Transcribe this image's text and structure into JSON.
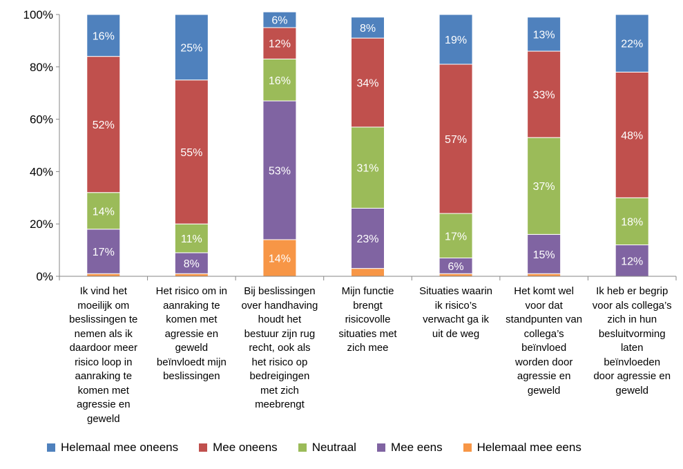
{
  "chart_data": {
    "type": "bar",
    "stacked": true,
    "title": "",
    "xlabel": "",
    "ylabel": "",
    "ylim": [
      0,
      100
    ],
    "yticks": [
      0,
      20,
      40,
      60,
      80,
      100
    ],
    "ytick_labels": [
      "0%",
      "20%",
      "40%",
      "60%",
      "80%",
      "100%"
    ],
    "grid": false,
    "legend_position": "bottom",
    "categories": [
      "Ik vind het moeilijk om beslissingen te nemen als ik daardoor meer risico loop in aanraking te komen met agressie en geweld",
      "Het risico om in aanraking te komen met agressie en geweld beïnvloedt mijn beslissingen",
      "Bij beslissingen over handhaving houdt het bestuur zijn rug recht, ook als het risico op bedreigingen met zich meebrengt",
      "Mijn functie brengt risicovolle situaties met zich mee",
      "Situaties waarin ik risico’s verwacht ga ik uit de weg",
      "Het komt wel voor dat standpunten van collega’s beïnvloed worden door agressie en geweld",
      "Ik heb er begrip voor als collega’s zich in hun besluitvorming laten beïnvloeden door agressie en geweld"
    ],
    "category_lines": [
      [
        "Ik vind het",
        "moeilijk om",
        "beslissingen te",
        "nemen als ik",
        "daardoor meer",
        "risico loop in",
        "aanraking te",
        "komen met",
        "agressie en",
        "geweld"
      ],
      [
        "Het risico om in",
        "aanraking te",
        "komen met",
        "agressie en",
        "geweld",
        "beïnvloedt mijn",
        "beslissingen"
      ],
      [
        "Bij beslissingen",
        "over handhaving",
        "houdt het",
        "bestuur zijn rug",
        "recht, ook als",
        "het risico op",
        "bedreigingen",
        "met zich",
        "meebrengt"
      ],
      [
        "Mijn functie",
        "brengt",
        "risicovolle",
        "situaties met",
        "zich mee"
      ],
      [
        "Situaties waarin",
        "ik risico’s",
        "verwacht ga ik",
        "uit de weg"
      ],
      [
        "Het komt wel",
        "voor dat",
        "standpunten van",
        "collega’s",
        "beïnvloed",
        "worden door",
        "agressie en",
        "geweld"
      ],
      [
        "Ik heb er begrip",
        "voor als collega’s",
        "zich in hun",
        "besluitvorming",
        "laten",
        "beïnvloeden",
        "door agressie en",
        "geweld"
      ]
    ],
    "series": [
      {
        "name": "Helemaal mee eens",
        "color": "#F79646",
        "values": [
          1,
          1,
          14,
          3,
          1,
          1,
          0
        ],
        "labels": [
          "",
          "",
          "14%",
          "",
          "",
          "",
          ""
        ]
      },
      {
        "name": "Mee eens",
        "color": "#8064A2",
        "values": [
          17,
          8,
          53,
          23,
          6,
          15,
          12
        ],
        "labels": [
          "17%",
          "8%",
          "53%",
          "23%",
          "6%",
          "15%",
          "12%"
        ]
      },
      {
        "name": "Neutraal",
        "color": "#9BBB59",
        "values": [
          14,
          11,
          16,
          31,
          17,
          37,
          18
        ],
        "labels": [
          "14%",
          "11%",
          "16%",
          "31%",
          "17%",
          "37%",
          "18%"
        ]
      },
      {
        "name": "Mee oneens",
        "color": "#C0504D",
        "values": [
          52,
          55,
          12,
          34,
          57,
          33,
          48
        ],
        "labels": [
          "52%",
          "55%",
          "12%",
          "34%",
          "57%",
          "33%",
          "48%"
        ]
      },
      {
        "name": "Helemaal mee oneens",
        "color": "#4F81BD",
        "values": [
          16,
          25,
          6,
          8,
          19,
          13,
          22
        ],
        "labels": [
          "16%",
          "25%",
          "6%",
          "8%",
          "19%",
          "13%",
          "22%"
        ]
      }
    ],
    "legend_order": [
      "Helemaal mee oneens",
      "Mee oneens",
      "Neutraal",
      "Mee eens",
      "Helemaal mee eens"
    ]
  }
}
